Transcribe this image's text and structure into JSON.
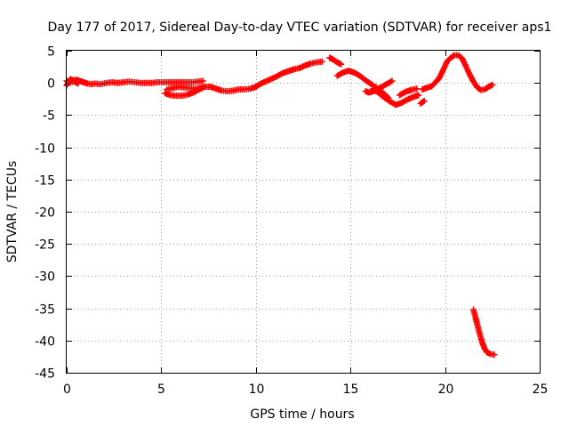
{
  "chart_data": {
    "type": "scatter",
    "title": "Day 177 of 2017, Sidereal Day-to-day VTEC variation (SDTVAR) for receiver aps1",
    "xlabel": "GPS time / hours",
    "ylabel": "SDTVAR / TECUs",
    "xlim": [
      0,
      25
    ],
    "ylim": [
      -45,
      5
    ],
    "xticks": [
      0,
      5,
      10,
      15,
      20,
      25
    ],
    "yticks": [
      5,
      0,
      -5,
      -10,
      -15,
      -20,
      -25,
      -30,
      -35,
      -40,
      -45
    ],
    "xtick_labels": [
      "0",
      "5",
      "10",
      "15",
      "20",
      "25"
    ],
    "ytick_labels": [
      "5",
      "0",
      "-5",
      "-10",
      "-15",
      "-20",
      "-25",
      "-30",
      "-35",
      "-40",
      "-45"
    ],
    "grid": true,
    "marker": "+",
    "series": [
      {
        "name": "SDTVAR",
        "color": "#ff0000",
        "segments": [
          [
            [
              0.0,
              -0.4
            ],
            [
              0.1,
              0.2
            ],
            [
              0.2,
              0.6
            ],
            [
              0.35,
              0.4
            ],
            [
              0.5,
              0.5
            ],
            [
              0.7,
              0.3
            ],
            [
              0.9,
              0.1
            ],
            [
              1.1,
              -0.1
            ],
            [
              1.3,
              -0.2
            ],
            [
              1.5,
              -0.1
            ],
            [
              1.8,
              -0.2
            ],
            [
              2.1,
              0.0
            ],
            [
              2.4,
              0.1
            ],
            [
              2.7,
              0.0
            ],
            [
              3.0,
              0.1
            ],
            [
              3.3,
              0.2
            ],
            [
              3.6,
              0.1
            ],
            [
              3.9,
              0.0
            ],
            [
              4.2,
              0.0
            ],
            [
              4.5,
              0.0
            ],
            [
              4.8,
              0.1
            ],
            [
              5.1,
              0.1
            ],
            [
              5.4,
              0.1
            ],
            [
              5.7,
              0.1
            ],
            [
              6.0,
              0.1
            ],
            [
              6.3,
              0.1
            ],
            [
              6.6,
              0.1
            ],
            [
              6.9,
              0.2
            ],
            [
              7.2,
              0.3
            ]
          ],
          [
            [
              0.0,
              0.3
            ],
            [
              0.2,
              0.1
            ],
            [
              0.4,
              0.2
            ],
            [
              0.6,
              -0.1
            ]
          ],
          [
            [
              5.2,
              -1.6
            ],
            [
              5.5,
              -1.9
            ],
            [
              5.8,
              -2.0
            ],
            [
              6.1,
              -2.0
            ],
            [
              6.4,
              -1.8
            ],
            [
              6.7,
              -1.5
            ],
            [
              7.0,
              -1.0
            ],
            [
              7.3,
              -0.6
            ],
            [
              7.6,
              -0.6
            ],
            [
              7.9,
              -0.9
            ],
            [
              8.2,
              -1.2
            ],
            [
              8.5,
              -1.3
            ],
            [
              8.8,
              -1.2
            ],
            [
              9.1,
              -1.0
            ],
            [
              9.4,
              -1.0
            ],
            [
              9.7,
              -0.9
            ],
            [
              10.0,
              -0.6
            ],
            [
              10.2,
              -0.2
            ],
            [
              10.5,
              0.2
            ],
            [
              10.8,
              0.6
            ],
            [
              11.1,
              1.0
            ],
            [
              11.4,
              1.5
            ],
            [
              11.7,
              1.8
            ],
            [
              12.0,
              2.1
            ],
            [
              12.3,
              2.3
            ],
            [
              12.6,
              2.7
            ],
            [
              12.9,
              3.0
            ],
            [
              13.2,
              3.2
            ],
            [
              13.5,
              3.3
            ]
          ],
          [
            [
              5.3,
              -1.0
            ],
            [
              5.6,
              -0.8
            ],
            [
              5.9,
              -0.6
            ],
            [
              6.2,
              -0.7
            ],
            [
              6.5,
              -0.8
            ],
            [
              6.8,
              -0.9
            ],
            [
              7.1,
              -0.7
            ]
          ],
          [
            [
              13.9,
              3.9
            ],
            [
              14.1,
              3.6
            ],
            [
              14.3,
              3.2
            ],
            [
              14.5,
              2.9
            ]
          ],
          [
            [
              14.3,
              1.1
            ],
            [
              14.6,
              1.6
            ],
            [
              14.9,
              1.9
            ],
            [
              15.2,
              1.6
            ],
            [
              15.5,
              1.1
            ],
            [
              15.8,
              0.4
            ],
            [
              16.1,
              -0.2
            ],
            [
              16.4,
              -0.8
            ],
            [
              16.7,
              -1.5
            ],
            [
              17.0,
              -2.3
            ]
          ],
          [
            [
              15.8,
              -1.3
            ],
            [
              16.0,
              -1.5
            ],
            [
              16.3,
              -1.2
            ],
            [
              16.6,
              -0.7
            ],
            [
              16.9,
              -0.2
            ],
            [
              17.2,
              0.3
            ]
          ],
          [
            [
              16.2,
              -0.9
            ],
            [
              16.5,
              -1.6
            ],
            [
              16.8,
              -2.3
            ],
            [
              17.1,
              -2.9
            ],
            [
              17.4,
              -3.4
            ],
            [
              17.7,
              -3.1
            ],
            [
              18.0,
              -2.6
            ],
            [
              18.3,
              -2.2
            ],
            [
              18.6,
              -1.9
            ]
          ],
          [
            [
              17.6,
              -1.9
            ],
            [
              17.9,
              -1.4
            ],
            [
              18.2,
              -1.1
            ],
            [
              18.5,
              -0.9
            ]
          ],
          [
            [
              18.7,
              -3.2
            ],
            [
              18.9,
              -2.8
            ]
          ],
          [
            [
              18.8,
              -1.0
            ],
            [
              19.0,
              -0.8
            ],
            [
              19.3,
              -0.5
            ],
            [
              19.5,
              0.1
            ],
            [
              19.7,
              0.8
            ],
            [
              19.9,
              2.0
            ],
            [
              20.1,
              3.3
            ],
            [
              20.3,
              3.9
            ],
            [
              20.5,
              4.3
            ],
            [
              20.7,
              4.3
            ],
            [
              20.9,
              3.8
            ],
            [
              21.1,
              2.6
            ],
            [
              21.3,
              1.3
            ],
            [
              21.5,
              0.2
            ],
            [
              21.7,
              -0.7
            ],
            [
              21.9,
              -1.1
            ],
            [
              22.1,
              -1.0
            ],
            [
              22.3,
              -0.6
            ],
            [
              22.5,
              -0.3
            ]
          ],
          [
            [
              21.5,
              -35.2
            ],
            [
              21.6,
              -36.3
            ],
            [
              21.7,
              -37.5
            ],
            [
              21.8,
              -38.6
            ],
            [
              21.9,
              -39.7
            ],
            [
              22.0,
              -40.6
            ],
            [
              22.1,
              -41.3
            ],
            [
              22.2,
              -41.8
            ],
            [
              22.4,
              -42.1
            ],
            [
              22.6,
              -42.2
            ]
          ]
        ]
      }
    ]
  }
}
